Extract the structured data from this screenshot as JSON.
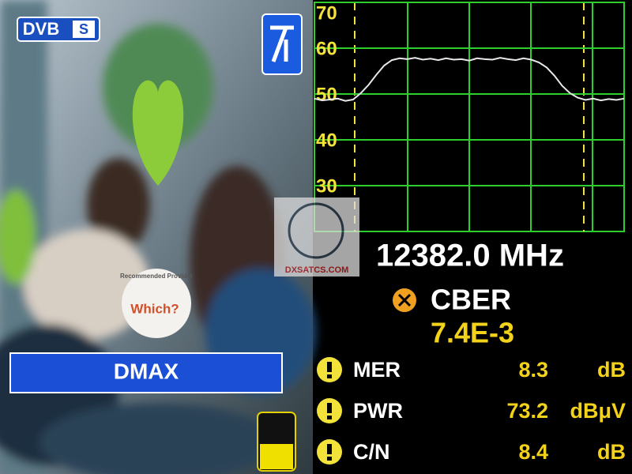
{
  "logo": {
    "dvb": "DVB",
    "s": "S"
  },
  "channel": "DMAX",
  "photo_badge": {
    "brand": "Which?",
    "ring": "Recommended Provider"
  },
  "watermark": "DXSATCS.COM",
  "frequency": "12382.0 MHz",
  "cber": {
    "label": "CBER",
    "value": "7.4E-3"
  },
  "measurements": [
    {
      "name": "MER",
      "value": "8.3",
      "unit": "dB"
    },
    {
      "name": "PWR",
      "value": "73.2",
      "unit": "dBμV"
    },
    {
      "name": "C/N",
      "value": "8.4",
      "unit": "dB"
    }
  ],
  "chart_data": {
    "type": "line",
    "ylim": [
      20,
      70
    ],
    "yticks": [
      30,
      40,
      50,
      60,
      70
    ],
    "grid": true,
    "color": "#e8e8e8",
    "values": [
      49,
      48.6,
      48.8,
      49,
      48.5,
      48.8,
      50.2,
      52,
      54.2,
      56.2,
      57.4,
      57.8,
      57.6,
      57.9,
      57.5,
      57.7,
      57.4,
      57.8,
      57.5,
      57.6,
      57.3,
      57.8,
      57.6,
      57.5,
      57.9,
      57.6,
      57.4,
      57.8,
      57.5,
      56.9,
      55.8,
      54,
      51.8,
      50.2,
      49.2,
      48.7,
      49,
      48.6,
      48.9,
      48.7,
      49
    ]
  }
}
